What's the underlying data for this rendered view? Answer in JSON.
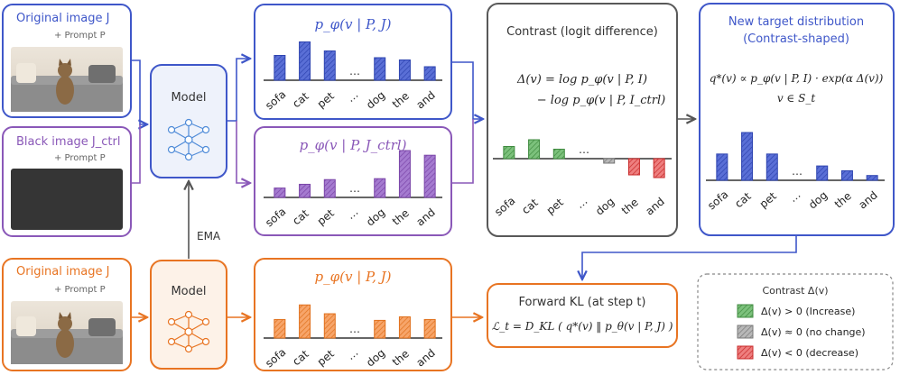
{
  "colors": {
    "blue": "#3f57c9",
    "purple": "#8a58b8",
    "orange": "#e87422",
    "gray": "#595959",
    "green": "#4d9a4d",
    "red": "#d83a3a",
    "neutral": "#999999"
  },
  "inputs": {
    "original_top": {
      "title": "Original image J",
      "prompt": "+ Prompt P",
      "image": "cat-on-sofa-photo"
    },
    "black": {
      "title": "Black image J_ctrl",
      "prompt": "+ Prompt P",
      "image": "black-image"
    },
    "original_bottom": {
      "title": "Original image J",
      "prompt": "+ Prompt P",
      "image": "cat-on-sofa-photo"
    }
  },
  "models": {
    "top": "Model",
    "bottom": "Model",
    "ema_label": "EMA"
  },
  "panels": {
    "blue": {
      "formula": "p_φ(v | P, J)"
    },
    "purple": {
      "formula": "p_φ(v | P, J_ctrl)"
    },
    "orange": {
      "formula": "p_φ(v | P, J)"
    }
  },
  "tokens": [
    "sofa",
    "cat",
    "pet",
    "…",
    "dog",
    "the",
    "and"
  ],
  "contrast": {
    "title": "Contrast (logit difference)",
    "formula_line1": "Δ(v) = log p_φ(v | P, I)",
    "formula_line2": "− log p_φ(v | P, I_ctrl)"
  },
  "target": {
    "title_line1": "New target distribution",
    "title_line2": "(Contrast-shaped)",
    "formula_line1": "q*(v) ∝ p_φ(v | P, I) · exp(α Δ(v))",
    "formula_line2": "v ∈ S_t"
  },
  "forward_kl": {
    "title": "Forward KL (at step t)",
    "formula": "ℒ_t = D_KL ( q*(v) ‖ p_θ(v | P, J) )"
  },
  "legend": {
    "title": "Contrast Δ(v)",
    "items": [
      {
        "label": "Δ(v) > 0 (Increase)",
        "color": "#4d9a4d"
      },
      {
        "label": "Δ(v) ≈ 0 (no change)",
        "color": "#888888"
      },
      {
        "label": "Δ(v) < 0 (decrease)",
        "color": "#d83a3a"
      }
    ]
  },
  "chart_data": [
    {
      "type": "bar",
      "name_hint": "blue",
      "categories": [
        "sofa",
        "cat",
        "pet",
        "dog",
        "the",
        "and"
      ],
      "values": [
        0.55,
        0.85,
        0.65,
        0.5,
        0.45,
        0.3
      ]
    },
    {
      "type": "bar",
      "name_hint": "purple",
      "categories": [
        "sofa",
        "cat",
        "pet",
        "dog",
        "the",
        "and"
      ],
      "values": [
        0.2,
        0.28,
        0.38,
        0.4,
        1.0,
        0.9
      ]
    },
    {
      "type": "bar",
      "name_hint": "contrast",
      "categories": [
        "sofa",
        "cat",
        "pet",
        "dog",
        "the",
        "and"
      ],
      "values": [
        0.45,
        0.7,
        0.35,
        -0.1,
        -0.6,
        -0.7
      ]
    },
    {
      "type": "bar",
      "name_hint": "target",
      "categories": [
        "sofa",
        "cat",
        "pet",
        "dog",
        "the",
        "and"
      ],
      "values": [
        0.55,
        1.0,
        0.55,
        0.3,
        0.2,
        0.1
      ]
    },
    {
      "type": "bar",
      "name_hint": "orange",
      "categories": [
        "sofa",
        "cat",
        "pet",
        "dog",
        "the",
        "and"
      ],
      "values": [
        0.42,
        0.75,
        0.55,
        0.4,
        0.48,
        0.42
      ]
    }
  ]
}
